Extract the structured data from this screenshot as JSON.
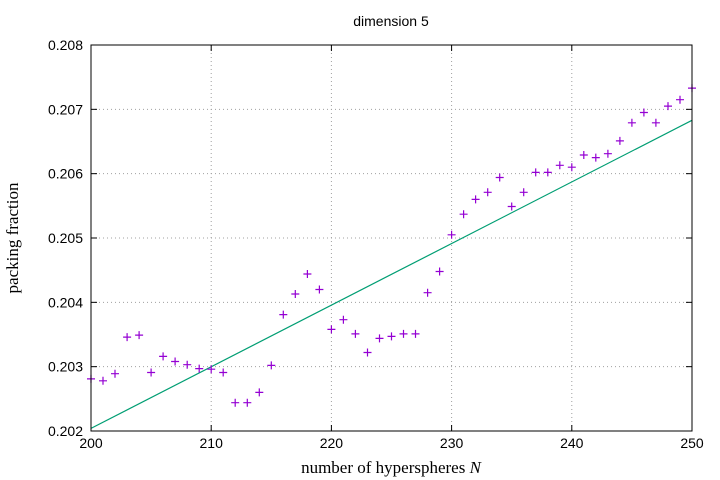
{
  "chart_data": {
    "type": "scatter",
    "title": "dimension 5",
    "xlabel": "number of hyperspheres",
    "xlabel_var": "N",
    "ylabel": "packing fraction",
    "xlim": [
      200,
      250
    ],
    "ylim": [
      0.202,
      0.208
    ],
    "xticks": [
      200,
      210,
      220,
      230,
      240,
      250
    ],
    "yticks": [
      0.202,
      0.203,
      0.204,
      0.205,
      0.206,
      0.207,
      0.208
    ],
    "ytick_labels": [
      "0.202",
      "0.203",
      "0.204",
      "0.205",
      "0.206",
      "0.207",
      "0.208"
    ],
    "grid": true,
    "series": [
      {
        "kind": "points",
        "marker": "plus",
        "color": "#9400d3",
        "x": [
          200,
          201,
          202,
          203,
          204,
          205,
          206,
          207,
          208,
          209,
          210,
          211,
          212,
          213,
          214,
          215,
          216,
          217,
          218,
          219,
          220,
          221,
          222,
          223,
          224,
          225,
          226,
          227,
          228,
          229,
          230,
          231,
          232,
          233,
          234,
          235,
          236,
          237,
          238,
          239,
          240,
          241,
          242,
          243,
          244,
          245,
          246,
          247,
          248,
          249,
          250
        ],
        "y": [
          0.20281,
          0.20278,
          0.20289,
          0.20346,
          0.20349,
          0.20291,
          0.20316,
          0.20308,
          0.20303,
          0.20297,
          0.20296,
          0.20291,
          0.20244,
          0.20244,
          0.2026,
          0.20302,
          0.20381,
          0.20413,
          0.20444,
          0.2042,
          0.20358,
          0.20373,
          0.20351,
          0.20322,
          0.20344,
          0.20347,
          0.20351,
          0.20351,
          0.20415,
          0.20448,
          0.20505,
          0.20537,
          0.2056,
          0.20571,
          0.20594,
          0.20549,
          0.20571,
          0.20602,
          0.20602,
          0.20613,
          0.2061,
          0.20629,
          0.20625,
          0.20631,
          0.20651,
          0.20679,
          0.20695,
          0.20679,
          0.20705,
          0.20715,
          0.20733
        ]
      },
      {
        "kind": "line",
        "color": "#009e73",
        "x": [
          200,
          250
        ],
        "y": [
          0.20204,
          0.20683
        ]
      }
    ]
  }
}
